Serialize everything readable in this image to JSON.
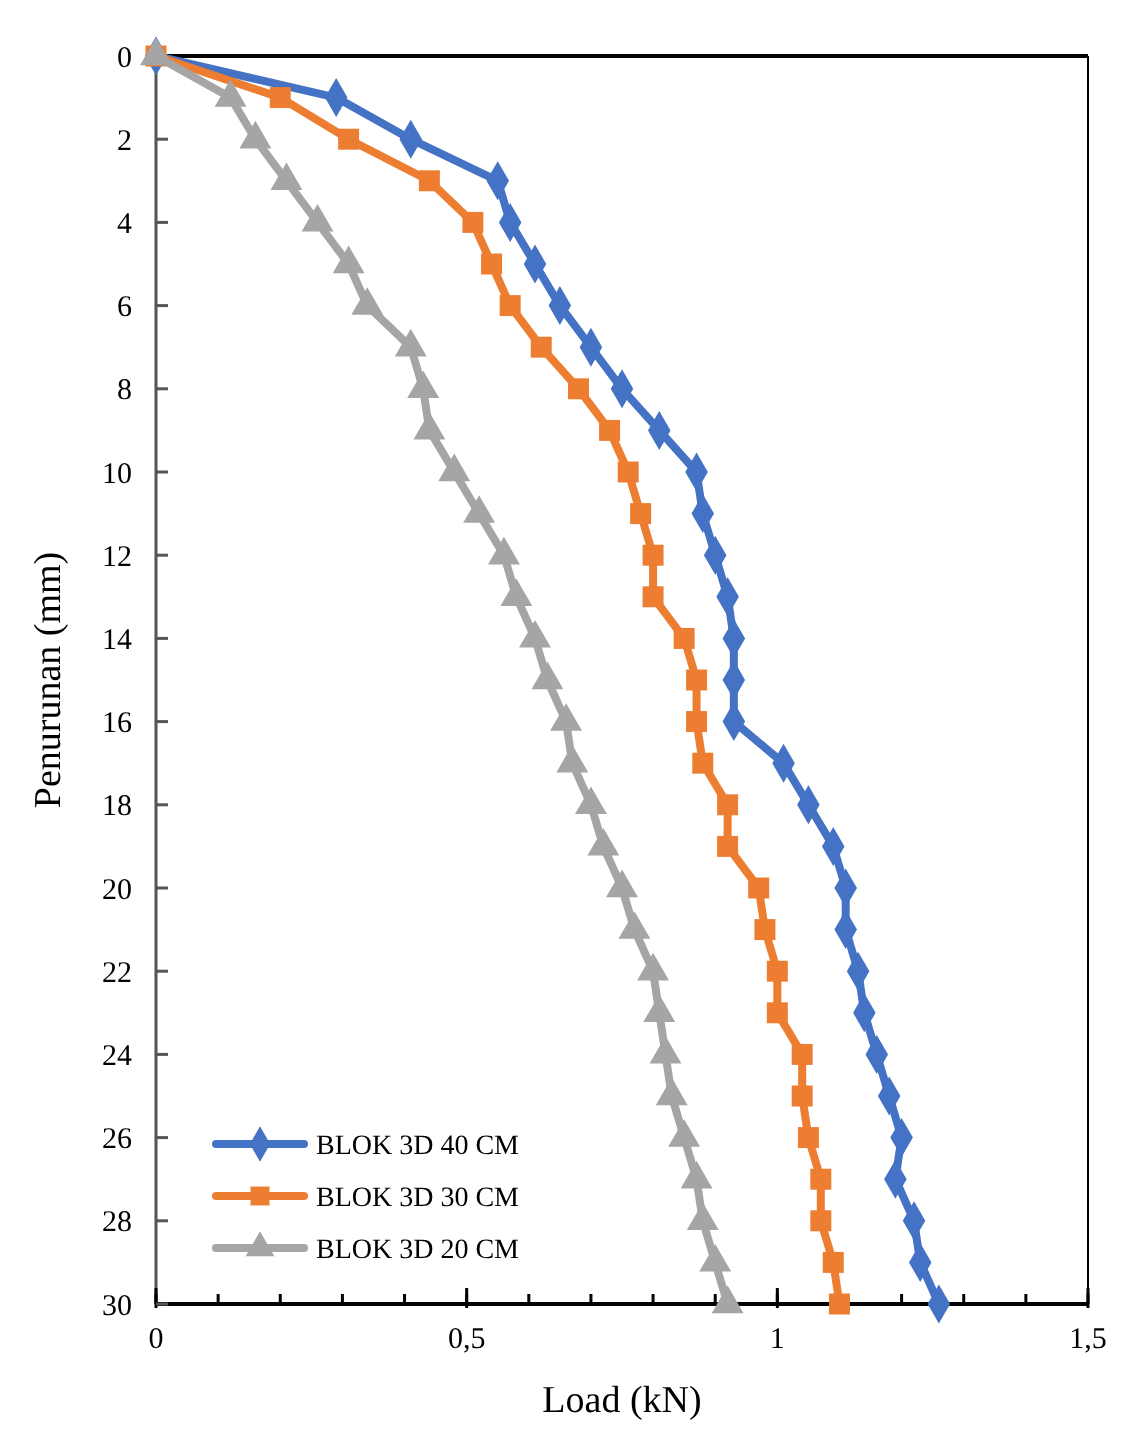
{
  "chart_data": {
    "type": "line",
    "xlabel": "Load (kN)",
    "ylabel": "Penurunan (mm)",
    "xlim": [
      0,
      1.5
    ],
    "xticks": [
      0,
      {
        "value": 0.5,
        "label": "0,5"
      },
      1,
      {
        "value": 1.5,
        "label": "1,5"
      }
    ],
    "ylim": [
      30,
      0
    ],
    "yticks": [
      0,
      2,
      4,
      6,
      8,
      10,
      12,
      14,
      16,
      18,
      20,
      22,
      24,
      26,
      28,
      30
    ],
    "grid": false,
    "legend": "bottom left",
    "line_style": "solid",
    "series": [
      {
        "name": "BLOK 3D 40 CM",
        "color": "#4472c4",
        "marker": "diamond",
        "x": [
          0,
          0.29,
          0.41,
          0.55,
          0.57,
          0.61,
          0.65,
          0.7,
          0.75,
          0.81,
          0.87,
          0.88,
          0.9,
          0.92,
          0.93,
          0.93,
          0.93,
          1.01,
          1.05,
          1.09,
          1.11,
          1.11,
          1.13,
          1.14,
          1.16,
          1.18,
          1.2,
          1.19,
          1.22,
          1.23,
          1.26
        ],
        "values": [
          0,
          1,
          2,
          3,
          4,
          5,
          6,
          7,
          8,
          9,
          10,
          11,
          12,
          13,
          14,
          15,
          16,
          17,
          18,
          19,
          20,
          21,
          22,
          23,
          24,
          25,
          26,
          27,
          28,
          29,
          30
        ]
      },
      {
        "name": "BLOK 3D 30 CM",
        "color": "#ed7d31",
        "marker": "square",
        "x": [
          0,
          0.2,
          0.31,
          0.44,
          0.51,
          0.54,
          0.57,
          0.62,
          0.68,
          0.73,
          0.76,
          0.78,
          0.8,
          0.8,
          0.85,
          0.87,
          0.87,
          0.88,
          0.92,
          0.92,
          0.97,
          0.98,
          1,
          1,
          1.04,
          1.04,
          1.05,
          1.07,
          1.07,
          1.09,
          1.1
        ],
        "values": [
          0,
          1,
          2,
          3,
          4,
          5,
          6,
          7,
          8,
          9,
          10,
          11,
          12,
          13,
          14,
          15,
          16,
          17,
          18,
          19,
          20,
          21,
          22,
          23,
          24,
          25,
          26,
          27,
          28,
          29,
          30
        ]
      },
      {
        "name": "BLOK 3D 20 CM",
        "color": "#a5a5a5",
        "marker": "triangle",
        "x": [
          0,
          0.12,
          0.16,
          0.21,
          0.26,
          0.31,
          0.34,
          0.41,
          0.43,
          0.44,
          0.48,
          0.52,
          0.56,
          0.58,
          0.61,
          0.63,
          0.66,
          0.67,
          0.7,
          0.72,
          0.75,
          0.77,
          0.8,
          0.81,
          0.82,
          0.83,
          0.85,
          0.87,
          0.88,
          0.9,
          0.92
        ],
        "values": [
          0,
          1,
          2,
          3,
          4,
          5,
          6,
          7,
          8,
          9,
          10,
          11,
          12,
          13,
          14,
          15,
          16,
          17,
          18,
          19,
          20,
          21,
          22,
          23,
          24,
          25,
          26,
          27,
          28,
          29,
          30
        ]
      }
    ]
  }
}
